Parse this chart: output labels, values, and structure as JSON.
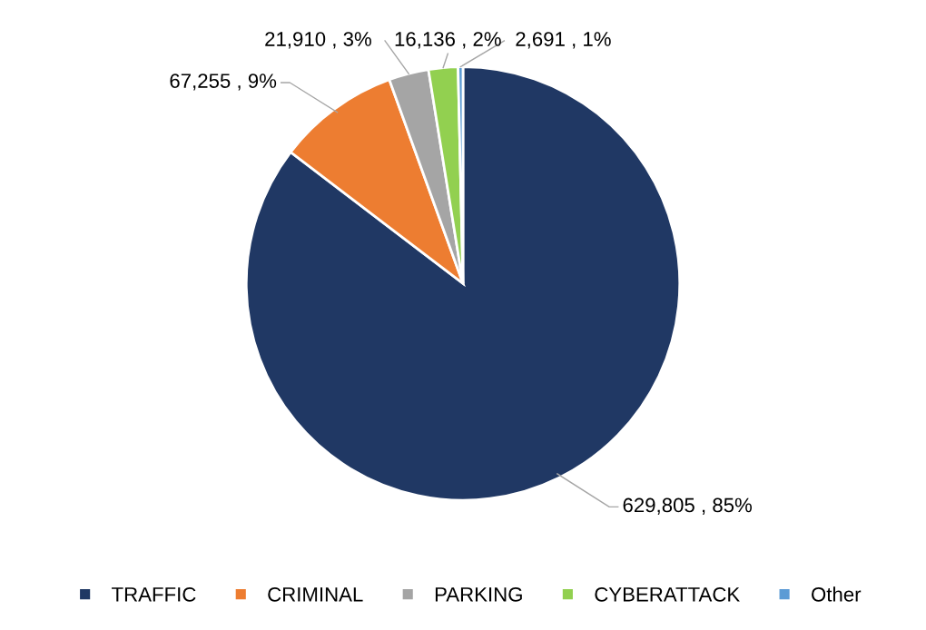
{
  "chart_data": {
    "type": "pie",
    "categories": [
      "TRAFFIC",
      "CRIMINAL",
      "PARKING",
      "CYBERATTACK",
      "Other"
    ],
    "values": [
      629805,
      67255,
      21910,
      16136,
      2691
    ],
    "colors": [
      "#203864",
      "#ed7d31",
      "#a5a5a5",
      "#92d050",
      "#5b9bd5"
    ],
    "value_labels": [
      "629,805 , 85%",
      "67,255 , 9%",
      "21,910 , 3%",
      "16,136 , 2%",
      "2,691 , 1%"
    ],
    "legend": "bottom"
  }
}
